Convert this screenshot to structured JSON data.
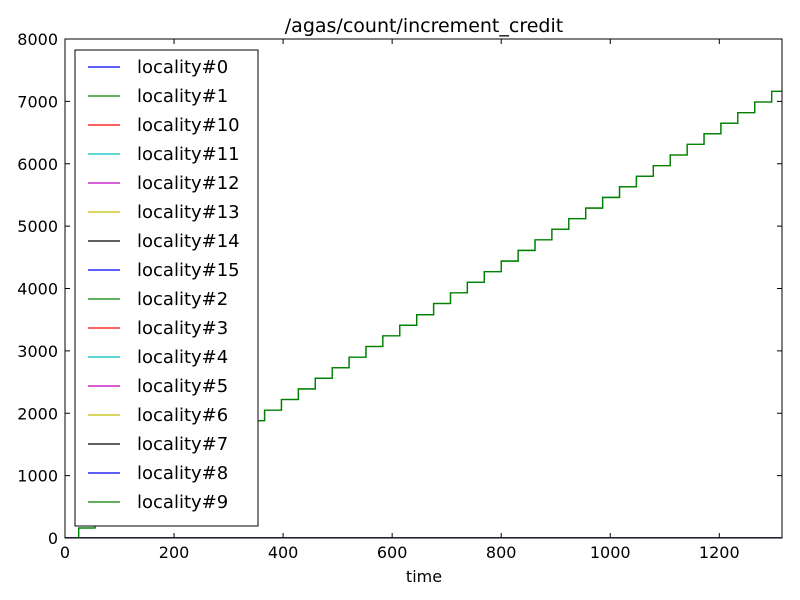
{
  "chart_data": {
    "type": "line",
    "title": "/agas/count/increment_credit",
    "xlabel": "time",
    "ylabel": "",
    "xlim": [
      0,
      1315
    ],
    "ylim": [
      0,
      8000
    ],
    "xticks": [
      0,
      200,
      400,
      600,
      800,
      1000,
      1200
    ],
    "yticks": [
      0,
      1000,
      2000,
      3000,
      4000,
      5000,
      6000,
      7000,
      8000
    ],
    "grid": false,
    "legend_position": "upper-left",
    "series": [
      {
        "name": "locality#0",
        "color": "#0000ff",
        "step": true,
        "x": [
          0,
          1315
        ],
        "y": [
          0,
          0
        ]
      },
      {
        "name": "locality#1",
        "color": "#008000",
        "step": true,
        "x": [
          0,
          25,
          55,
          87,
          118,
          149,
          180,
          211,
          242,
          273,
          304,
          335,
          366,
          397,
          428,
          459,
          490,
          521,
          552,
          583,
          614,
          645,
          676,
          707,
          738,
          769,
          800,
          831,
          862,
          893,
          924,
          955,
          986,
          1017,
          1048,
          1079,
          1110,
          1141,
          1172,
          1203,
          1234,
          1265,
          1296,
          1315
        ],
        "y": [
          0,
          160,
          330,
          500,
          690,
          870,
          1040,
          1210,
          1380,
          1540,
          1710,
          1880,
          2050,
          2220,
          2390,
          2560,
          2730,
          2900,
          3070,
          3240,
          3410,
          3580,
          3760,
          3930,
          4100,
          4270,
          4440,
          4610,
          4780,
          4950,
          5120,
          5290,
          5460,
          5630,
          5800,
          5970,
          6140,
          6310,
          6480,
          6650,
          6820,
          6990,
          7160,
          7160
        ]
      },
      {
        "name": "locality#10",
        "color": "#ff0000",
        "step": true,
        "x": [
          0,
          1315
        ],
        "y": [
          0,
          0
        ]
      },
      {
        "name": "locality#11",
        "color": "#00bfbf",
        "step": true,
        "x": [
          0,
          1315
        ],
        "y": [
          0,
          0
        ]
      },
      {
        "name": "locality#12",
        "color": "#bf00bf",
        "step": true,
        "x": [
          0,
          1315
        ],
        "y": [
          0,
          0
        ]
      },
      {
        "name": "locality#13",
        "color": "#bfbf00",
        "step": true,
        "x": [
          0,
          1315
        ],
        "y": [
          0,
          0
        ]
      },
      {
        "name": "locality#14",
        "color": "#000000",
        "step": true,
        "x": [
          0,
          1315
        ],
        "y": [
          0,
          0
        ]
      },
      {
        "name": "locality#15",
        "color": "#0000ff",
        "step": true,
        "x": [
          0,
          1315
        ],
        "y": [
          0,
          0
        ]
      },
      {
        "name": "locality#2",
        "color": "#008000",
        "step": true,
        "x": [
          0,
          1315
        ],
        "y": [
          0,
          0
        ]
      },
      {
        "name": "locality#3",
        "color": "#ff0000",
        "step": true,
        "x": [
          0,
          1315
        ],
        "y": [
          0,
          0
        ]
      },
      {
        "name": "locality#4",
        "color": "#00bfbf",
        "step": true,
        "x": [
          0,
          1315
        ],
        "y": [
          0,
          0
        ]
      },
      {
        "name": "locality#5",
        "color": "#bf00bf",
        "step": true,
        "x": [
          0,
          1315
        ],
        "y": [
          0,
          0
        ]
      },
      {
        "name": "locality#6",
        "color": "#bfbf00",
        "step": true,
        "x": [
          0,
          1315
        ],
        "y": [
          0,
          0
        ]
      },
      {
        "name": "locality#7",
        "color": "#000000",
        "step": true,
        "x": [
          0,
          1315
        ],
        "y": [
          0,
          0
        ]
      },
      {
        "name": "locality#8",
        "color": "#0000ff",
        "step": true,
        "x": [
          0,
          1315
        ],
        "y": [
          0,
          0
        ]
      },
      {
        "name": "locality#9",
        "color": "#008000",
        "step": true,
        "x": [
          0,
          25,
          55,
          87,
          118,
          149,
          180,
          211,
          242,
          273,
          304,
          335,
          366,
          397,
          428,
          459,
          490,
          521,
          552,
          583,
          614,
          645,
          676,
          707,
          738,
          769,
          800,
          831,
          862,
          893,
          924,
          955,
          986,
          1017,
          1048,
          1079,
          1110,
          1141,
          1172,
          1203,
          1234,
          1265,
          1296,
          1315
        ],
        "y": [
          0,
          160,
          330,
          500,
          690,
          870,
          1040,
          1210,
          1380,
          1540,
          1710,
          1880,
          2050,
          2220,
          2390,
          2560,
          2730,
          2900,
          3070,
          3240,
          3410,
          3580,
          3760,
          3930,
          4100,
          4270,
          4440,
          4610,
          4780,
          4950,
          5120,
          5290,
          5460,
          5630,
          5800,
          5970,
          6140,
          6310,
          6480,
          6650,
          6820,
          6990,
          7160,
          7160
        ]
      }
    ]
  }
}
